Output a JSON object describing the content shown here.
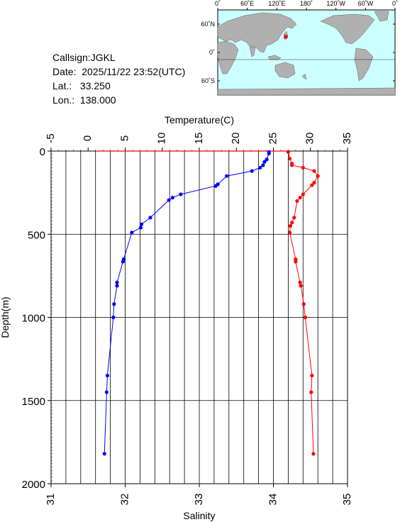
{
  "station": {
    "callsign_line": "Callsign:JGKL",
    "date_line": "Date:  2025/11/22 23:52(UTC)",
    "lat_line": "Lat.:   33.250",
    "lon_line": "Lon.:  138.000"
  },
  "map": {
    "lon_ticks": [
      "0˚",
      "60˚E",
      "120˚E",
      "180˚",
      "120˚W",
      "60˚W",
      "0˚"
    ],
    "lat_ticks": [
      "60˚N",
      "0˚",
      "60˚S"
    ],
    "ocean_color": "#ccffff",
    "land_color": "#b0b0b0",
    "marker_color": "#ff0000",
    "marker_lon": 138.0,
    "marker_lat": 33.25
  },
  "chart_data": {
    "type": "line",
    "top_axis": {
      "label": "Temperature(C)",
      "range": [
        -5,
        35
      ],
      "ticks": [
        "-5",
        "0",
        "5",
        "10",
        "15",
        "20",
        "25",
        "30",
        "35"
      ]
    },
    "bottom_axis": {
      "label": "Salinity",
      "range": [
        31,
        35
      ],
      "ticks": [
        "31",
        "32",
        "33",
        "34",
        "35"
      ]
    },
    "y_axis": {
      "label": "Depth(m)",
      "range": [
        0,
        2000
      ],
      "inverted": true,
      "ticks": [
        "0",
        "500",
        "1000",
        "1500",
        "2000"
      ]
    },
    "grid": true,
    "series": [
      {
        "axis": "temperature",
        "color": "#0000ff",
        "points": [
          [
            24.4,
            5
          ],
          [
            24.4,
            15
          ],
          [
            24.1,
            50
          ],
          [
            23.8,
            65
          ],
          [
            23.6,
            85
          ],
          [
            23.2,
            100
          ],
          [
            22.1,
            120
          ],
          [
            18.7,
            150
          ],
          [
            17.5,
            200
          ],
          [
            17.2,
            210
          ],
          [
            12.5,
            260
          ],
          [
            11.4,
            280
          ],
          [
            10.9,
            295
          ],
          [
            8.4,
            400
          ],
          [
            7.2,
            440
          ],
          [
            7.1,
            460
          ],
          [
            5.9,
            490
          ],
          [
            4.8,
            650
          ],
          [
            4.7,
            665
          ],
          [
            3.9,
            790
          ],
          [
            3.9,
            810
          ],
          [
            3.5,
            920
          ],
          [
            3.4,
            1000
          ],
          [
            2.6,
            1350
          ],
          [
            2.5,
            1450
          ],
          [
            2.2,
            1820
          ]
        ]
      },
      {
        "axis": "salinity",
        "color": "#ff0000",
        "points": [
          [
            34.2,
            5
          ],
          [
            34.22,
            45
          ],
          [
            34.25,
            75
          ],
          [
            34.25,
            85
          ],
          [
            34.4,
            100
          ],
          [
            34.55,
            120
          ],
          [
            34.6,
            150
          ],
          [
            34.55,
            190
          ],
          [
            34.52,
            205
          ],
          [
            34.4,
            260
          ],
          [
            34.36,
            280
          ],
          [
            34.32,
            300
          ],
          [
            34.28,
            400
          ],
          [
            34.25,
            430
          ],
          [
            34.23,
            450
          ],
          [
            34.22,
            490
          ],
          [
            34.3,
            650
          ],
          [
            34.3,
            665
          ],
          [
            34.36,
            790
          ],
          [
            34.37,
            810
          ],
          [
            34.41,
            920
          ],
          [
            34.43,
            1000
          ],
          [
            34.52,
            1350
          ],
          [
            34.51,
            1450
          ],
          [
            34.54,
            1820
          ]
        ]
      }
    ],
    "surface_line": {
      "color": "#ff0000",
      "from_temp": 1.0,
      "to_temp": 26.6,
      "depth": 0
    }
  }
}
